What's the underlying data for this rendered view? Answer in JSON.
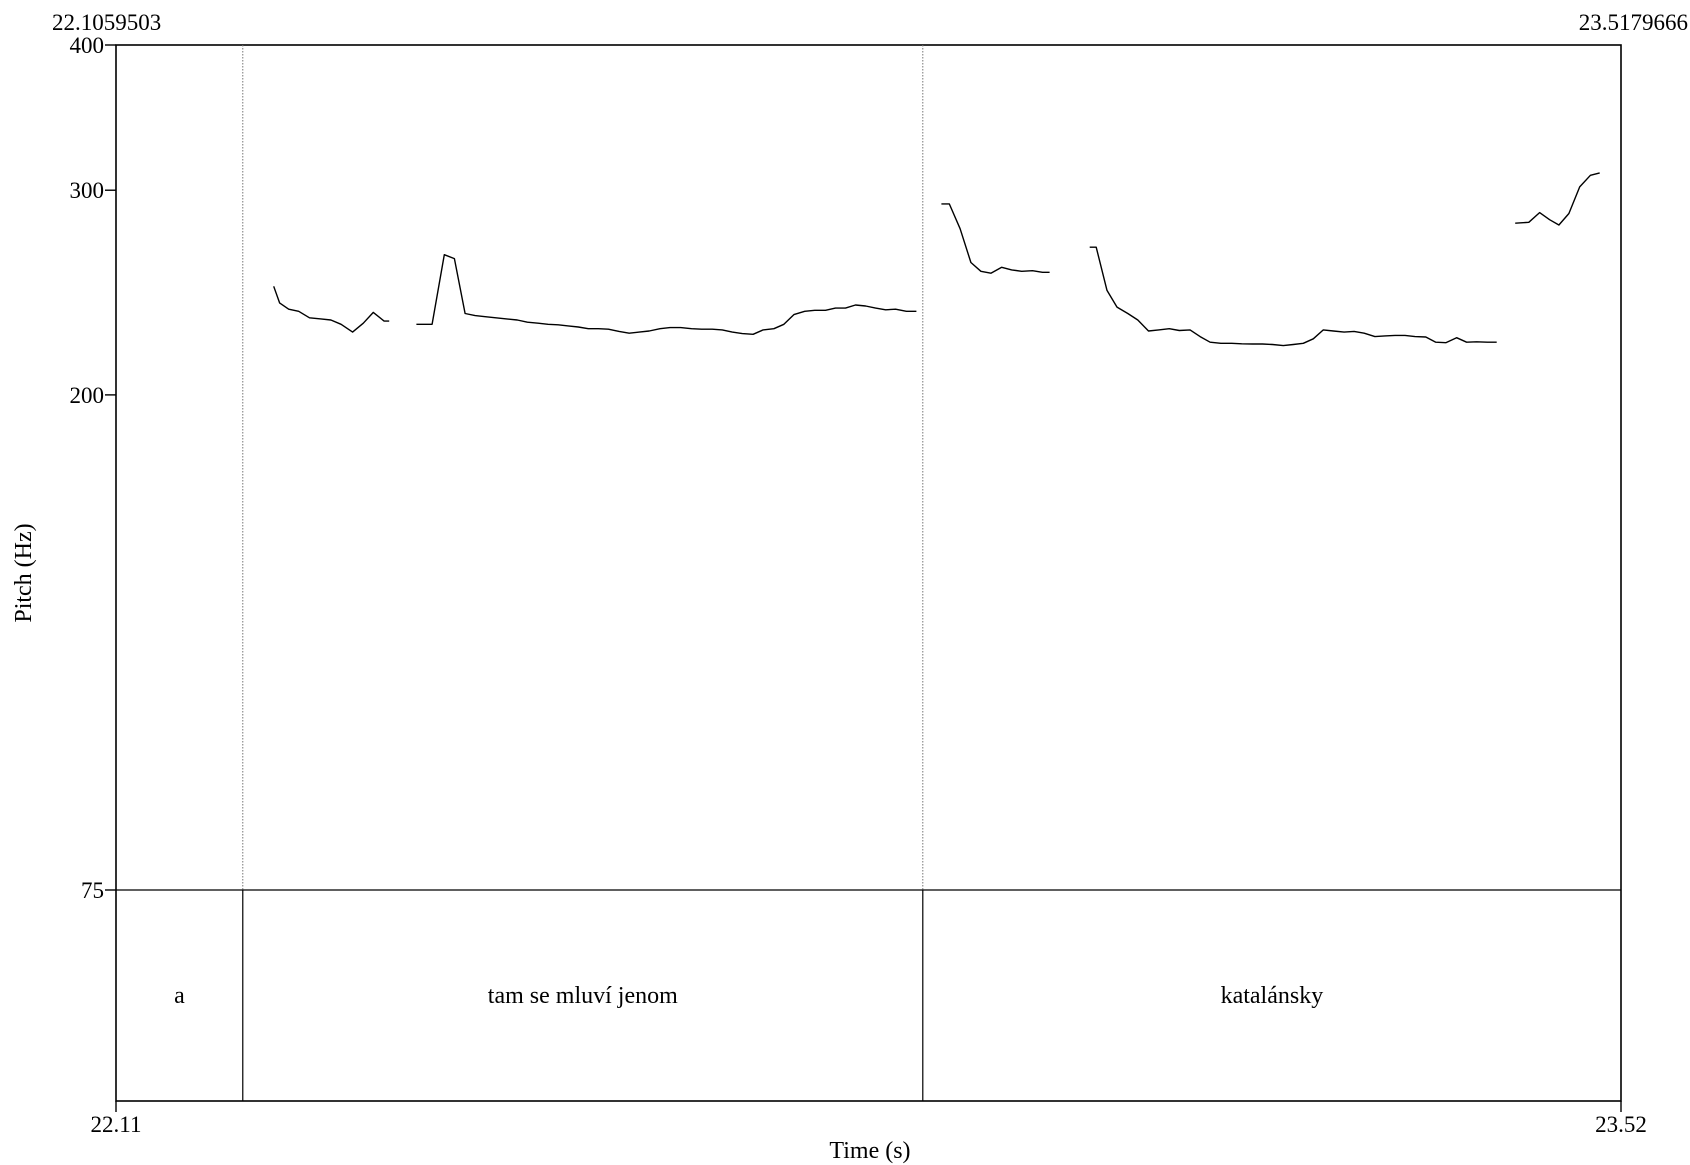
{
  "chart_data": {
    "type": "line",
    "xlabel": "Time (s)",
    "ylabel": "Pitch (Hz)",
    "xlim": [
      22.1059503,
      23.5179666
    ],
    "ylim": [
      75,
      400
    ],
    "y_scale": "log",
    "grid": false,
    "time_window": {
      "start_label": "22.1059503",
      "end_label": "23.5179666"
    },
    "x_ticks": [
      {
        "value": 22.1059503,
        "label": "22.11"
      },
      {
        "value": 23.5179666,
        "label": "23.52"
      }
    ],
    "y_ticks": [
      {
        "value": 400,
        "label": "400"
      },
      {
        "value": 300,
        "label": "300"
      },
      {
        "value": 200,
        "label": "200"
      },
      {
        "value": 75,
        "label": "75"
      }
    ],
    "boundaries": [
      22.2249,
      22.8629
    ],
    "intervals": [
      {
        "label": "a",
        "start": 22.1059503,
        "end": 22.2249
      },
      {
        "label": "tam se mluví jenom",
        "start": 22.2249,
        "end": 22.8629
      },
      {
        "label": "katalánsky",
        "start": 22.8629,
        "end": 23.5179666
      }
    ],
    "series": [
      {
        "segments": [
          [
            [
              22.2539,
              248
            ],
            [
              22.2594,
              240
            ],
            [
              22.268,
              237
            ],
            [
              22.2774,
              236
            ],
            [
              22.2875,
              233
            ],
            [
              22.2982,
              232.5
            ],
            [
              22.3076,
              232
            ],
            [
              22.3171,
              230
            ],
            [
              22.3279,
              226.5
            ],
            [
              22.338,
              230.5
            ],
            [
              22.3474,
              235.5
            ],
            [
              22.3575,
              231.5
            ],
            [
              22.3623,
              231.5
            ]
          ],
          [
            [
              22.3878,
              230
            ],
            [
              22.4025,
              230
            ],
            [
              22.414,
              264
            ],
            [
              22.4234,
              262
            ],
            [
              22.4335,
              235
            ],
            [
              22.4429,
              234
            ],
            [
              22.4523,
              233.5
            ],
            [
              22.4624,
              233
            ],
            [
              22.4724,
              232.5
            ],
            [
              22.4825,
              232
            ],
            [
              22.4919,
              231
            ],
            [
              22.502,
              230.5
            ],
            [
              22.5114,
              230
            ],
            [
              22.5208,
              229.8
            ],
            [
              22.5302,
              229.3
            ],
            [
              22.5397,
              228.8
            ],
            [
              22.5491,
              228
            ],
            [
              22.5585,
              228
            ],
            [
              22.5679,
              227.8
            ],
            [
              22.578,
              226.8
            ],
            [
              22.5874,
              226
            ],
            [
              22.5968,
              226.5
            ],
            [
              22.6062,
              227
            ],
            [
              22.6163,
              228
            ],
            [
              22.6257,
              228.5
            ],
            [
              22.6358,
              228.5
            ],
            [
              22.6459,
              228
            ],
            [
              22.6553,
              227.8
            ],
            [
              22.6654,
              227.8
            ],
            [
              22.6748,
              227.5
            ],
            [
              22.6842,
              226.5
            ],
            [
              22.6936,
              225.8
            ],
            [
              22.7037,
              225.5
            ],
            [
              22.7131,
              227.5
            ],
            [
              22.7232,
              228
            ],
            [
              22.7326,
              230
            ],
            [
              22.742,
              234.5
            ],
            [
              22.7521,
              236
            ],
            [
              22.7615,
              236.5
            ],
            [
              22.7716,
              236.5
            ],
            [
              22.781,
              237.5
            ],
            [
              22.7904,
              237.5
            ],
            [
              22.7998,
              239
            ],
            [
              22.8092,
              238.5
            ],
            [
              22.8186,
              237.5
            ],
            [
              22.828,
              236.7
            ],
            [
              22.8374,
              237
            ],
            [
              22.8475,
              236
            ],
            [
              22.8569,
              236
            ]
          ],
          [
            [
              22.8804,
              292
            ],
            [
              22.8878,
              292
            ],
            [
              22.8979,
              278
            ],
            [
              22.908,
              260
            ],
            [
              22.9174,
              255.5
            ],
            [
              22.9268,
              254.5
            ],
            [
              22.9369,
              257.5
            ],
            [
              22.9463,
              256.2
            ],
            [
              22.9557,
              255.5
            ],
            [
              22.9658,
              255.8
            ],
            [
              22.9752,
              255
            ],
            [
              22.9819,
              255
            ]
          ],
          [
            [
              23.0195,
              268
            ],
            [
              23.0256,
              268
            ],
            [
              23.0357,
              246
            ],
            [
              23.0451,
              238
            ],
            [
              23.0552,
              235
            ],
            [
              23.0646,
              232
            ],
            [
              23.0747,
              227
            ],
            [
              23.0841,
              227.5
            ],
            [
              23.0942,
              228
            ],
            [
              23.1036,
              227.2
            ],
            [
              23.1137,
              227.5
            ],
            [
              23.1231,
              224.5
            ],
            [
              23.1325,
              222
            ],
            [
              23.1426,
              221.5
            ],
            [
              23.1527,
              221.5
            ],
            [
              23.1621,
              221.3
            ],
            [
              23.1722,
              221.2
            ],
            [
              23.1816,
              221.2
            ],
            [
              23.191,
              221
            ],
            [
              23.2011,
              220.5
            ],
            [
              23.2105,
              221
            ],
            [
              23.2199,
              221.5
            ],
            [
              23.2293,
              223.5
            ],
            [
              23.2387,
              227.5
            ],
            [
              23.2481,
              227
            ],
            [
              23.2582,
              226.5
            ],
            [
              23.2676,
              226.8
            ],
            [
              23.277,
              226
            ],
            [
              23.2871,
              224.5
            ],
            [
              23.2965,
              224.8
            ],
            [
              23.3059,
              225
            ],
            [
              23.3153,
              225
            ],
            [
              23.3247,
              224.5
            ],
            [
              23.3348,
              224.3
            ],
            [
              23.3442,
              222
            ],
            [
              23.3536,
              221.8
            ],
            [
              23.3637,
              224
            ],
            [
              23.3731,
              222
            ],
            [
              23.3825,
              222.2
            ],
            [
              23.3926,
              222
            ],
            [
              23.4013,
              222
            ]
          ],
          [
            [
              23.4187,
              281
            ],
            [
              23.4315,
              281.5
            ],
            [
              23.4416,
              287
            ],
            [
              23.451,
              283
            ],
            [
              23.4597,
              280
            ],
            [
              23.4691,
              286.5
            ],
            [
              23.4792,
              302
            ],
            [
              23.4893,
              309
            ],
            [
              23.498,
              310.5
            ]
          ]
        ]
      }
    ]
  }
}
